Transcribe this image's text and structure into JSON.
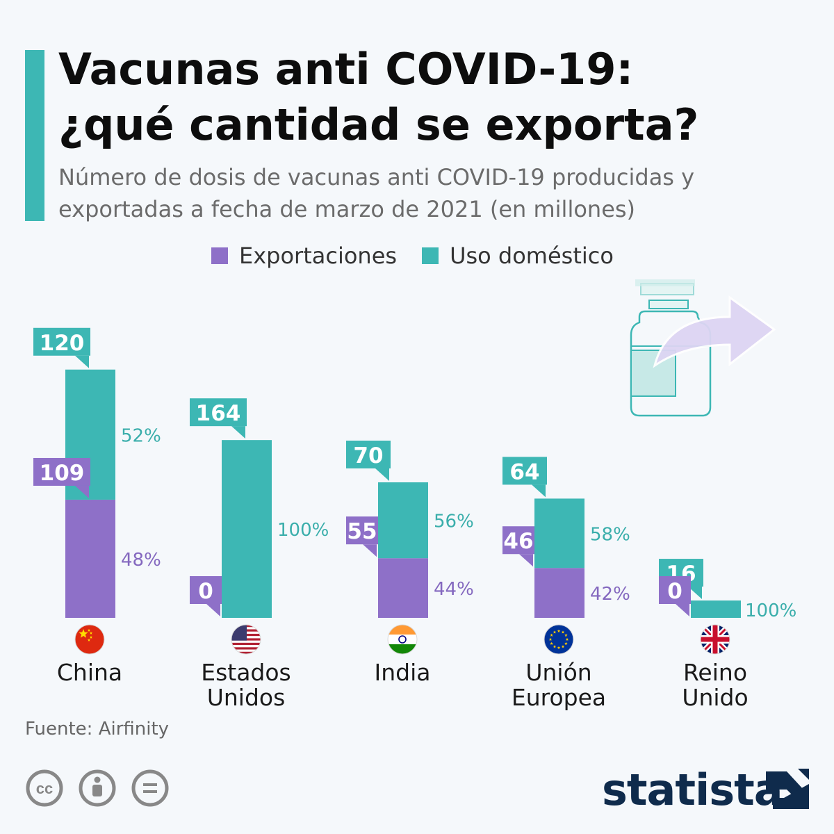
{
  "header": {
    "title_line1": "Vacunas anti COVID-19:",
    "title_line2": "¿qué cantidad se exporta?",
    "subtitle_line1": "Número de dosis de vacunas anti COVID-19 producidas y",
    "subtitle_line2": "exportadas a fecha de marzo de 2021 (en millones)"
  },
  "legend": {
    "exports_label": "Exportaciones",
    "domestic_label": "Uso doméstico"
  },
  "colors": {
    "exports": "#8e70c8",
    "domestic": "#3db7b4",
    "exports_text": "#8468bf",
    "domestic_text": "#3aaeab"
  },
  "countries": [
    {
      "name_line1": "China",
      "name_line2": "",
      "flag": "china-flag-icon"
    },
    {
      "name_line1": "Estados",
      "name_line2": "Unidos",
      "flag": "usa-flag-icon"
    },
    {
      "name_line1": "India",
      "name_line2": "",
      "flag": "india-flag-icon"
    },
    {
      "name_line1": "Unión",
      "name_line2": "Europea",
      "flag": "eu-flag-icon"
    },
    {
      "name_line1": "Reino",
      "name_line2": "Unido",
      "flag": "uk-flag-icon"
    }
  ],
  "chart_data": {
    "type": "bar",
    "stacked": true,
    "title": "Vacunas anti COVID-19: ¿qué cantidad se exporta?",
    "subtitle": "Número de dosis de vacunas anti COVID-19 producidas y exportadas a fecha de marzo de 2021 (en millones)",
    "categories": [
      "China",
      "Estados Unidos",
      "India",
      "Unión Europea",
      "Reino Unido"
    ],
    "unit": "millones",
    "series": [
      {
        "name": "Exportaciones",
        "values": [
          109,
          0,
          55,
          46,
          0
        ],
        "pct_labels": [
          "48%",
          "",
          "44%",
          "42%",
          ""
        ]
      },
      {
        "name": "Uso doméstico",
        "values": [
          120,
          164,
          70,
          64,
          16
        ],
        "pct_labels": [
          "52%",
          "100%",
          "56%",
          "58%",
          "100%"
        ]
      }
    ],
    "value_labels": {
      "exports": [
        "109",
        "0",
        "55",
        "46",
        "0"
      ],
      "domestic": [
        "120",
        "164",
        "70",
        "64",
        "16"
      ]
    }
  },
  "footer": {
    "source": "Fuente: Airfinity",
    "brand": "statista"
  }
}
